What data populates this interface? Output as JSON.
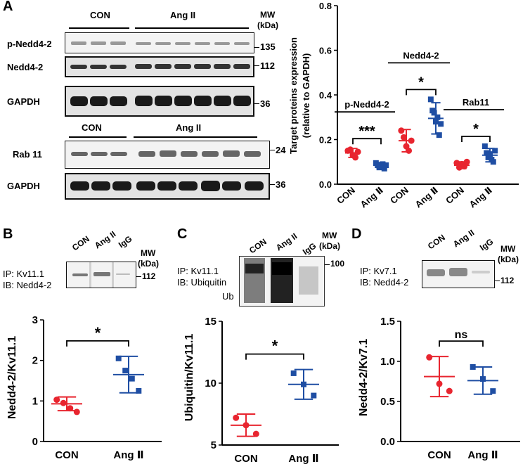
{
  "panels": {
    "A": "A",
    "B": "B",
    "C": "C",
    "D": "D"
  },
  "colors": {
    "con": "#e8252f",
    "ang": "#1f4ea3",
    "axis": "#000000"
  },
  "panelA": {
    "top_groups": {
      "con": "CON",
      "ang": "Ang II"
    },
    "bottom_groups": {
      "con": "CON",
      "ang": "Ang II"
    },
    "mw_header": "MW",
    "mw_unit": "(kDa)",
    "blots": [
      {
        "label": "p-Nedd4-2",
        "mw": "135"
      },
      {
        "label": "Nedd4-2",
        "mw": "112"
      },
      {
        "label": "GAPDH",
        "mw": "36"
      },
      {
        "label": "Rab 11",
        "mw": "24"
      },
      {
        "label": "GAPDH",
        "mw": "36"
      }
    ]
  },
  "panelB": {
    "ip": "IP: Kv11.1",
    "ib": "IB: Nedd4-2",
    "lanes": [
      "CON",
      "Ang II",
      "IgG"
    ],
    "mw_header": "MW",
    "mw_unit": "(kDa)",
    "mw_marker": "112"
  },
  "panelC": {
    "ip": "IP: Kv11.1",
    "ib": "IB: Ubiquitin",
    "ub": "Ub",
    "lanes": [
      "CON",
      "Ang II",
      "IgG"
    ],
    "mw_header": "MW",
    "mw_unit": "(kDa)",
    "mw_marker": "100"
  },
  "panelD": {
    "ip": "IP: Kv7.1",
    "ib": "IB: Nedd4-2",
    "lanes": [
      "CON",
      "Ang II",
      "IgG"
    ],
    "mw_header": "MW",
    "mw_unit": "(kDa)",
    "mw_marker": "112"
  },
  "chart_data": [
    {
      "id": "A",
      "type": "scatter",
      "title": "",
      "ylabel": "Target proteins expression (relative to GAPDH)",
      "ylim": [
        0,
        0.8
      ],
      "yticks": [
        "0.0",
        "0.2",
        "0.4",
        "0.6",
        "0.8"
      ],
      "categories": [
        "CON",
        "Ang Ⅱ",
        "CON",
        "Ang Ⅱ",
        "CON",
        "Ang Ⅱ"
      ],
      "groups": [
        {
          "name": "p-Nedd4-2",
          "sig": "***",
          "con": {
            "mean": 0.14,
            "sd": 0.02,
            "points": [
              0.15,
              0.155,
              0.13,
              0.12,
              0.145
            ]
          },
          "ang": {
            "mean": 0.085,
            "sd": 0.012,
            "points": [
              0.095,
              0.085,
              0.075,
              0.08,
              0.09,
              0.07,
              0.085
            ]
          }
        },
        {
          "name": "Nedd4-2",
          "sig": "*",
          "con": {
            "mean": 0.195,
            "sd": 0.05,
            "points": [
              0.24,
              0.21,
              0.17,
              0.15,
              0.195
            ]
          },
          "ang": {
            "mean": 0.295,
            "sd": 0.07,
            "points": [
              0.38,
              0.33,
              0.32,
              0.28,
              0.3,
              0.22,
              0.27
            ]
          }
        },
        {
          "name": "Rab11",
          "sig": "*",
          "con": {
            "mean": 0.085,
            "sd": 0.015,
            "points": [
              0.095,
              0.075,
              0.09,
              0.08,
              0.1
            ]
          },
          "ang": {
            "mean": 0.13,
            "sd": 0.03,
            "points": [
              0.17,
              0.14,
              0.12,
              0.135,
              0.11,
              0.1,
              0.15
            ]
          }
        }
      ]
    },
    {
      "id": "B",
      "type": "scatter",
      "ylabel": "Nedd4-2/Kv11.1",
      "ylim": [
        0,
        3
      ],
      "yticks": [
        "0",
        "1",
        "2",
        "3"
      ],
      "categories": [
        "CON",
        "Ang Ⅱ"
      ],
      "sig": "*",
      "con": {
        "mean": 0.93,
        "sd": 0.17,
        "points": [
          1.03,
          0.95,
          0.82,
          0.73
        ]
      },
      "ang": {
        "mean": 1.65,
        "sd": 0.45,
        "points": [
          2.05,
          1.75,
          1.55,
          1.25
        ]
      }
    },
    {
      "id": "C",
      "type": "scatter",
      "ylabel": "Ubiquitin/Kv11.1",
      "ylim": [
        5,
        15
      ],
      "yticks": [
        "5",
        "10",
        "15"
      ],
      "categories": [
        "CON",
        "Ang Ⅱ"
      ],
      "sig": "*",
      "con": {
        "mean": 6.6,
        "sd": 0.9,
        "points": [
          7.2,
          6.6,
          5.9
        ]
      },
      "ang": {
        "mean": 9.9,
        "sd": 1.2,
        "points": [
          10.8,
          9.9,
          9.0
        ]
      }
    },
    {
      "id": "D",
      "type": "scatter",
      "ylabel": "Nedd4-2/Kv7.1",
      "ylim": [
        0,
        1.5
      ],
      "yticks": [
        "0.0",
        "0.5",
        "1.0",
        "1.5"
      ],
      "categories": [
        "CON",
        "Ang Ⅱ"
      ],
      "sig": "ns",
      "con": {
        "mean": 0.81,
        "sd": 0.25,
        "points": [
          1.05,
          0.72,
          0.63
        ]
      },
      "ang": {
        "mean": 0.76,
        "sd": 0.17,
        "points": [
          0.93,
          0.78,
          0.63
        ]
      }
    }
  ]
}
